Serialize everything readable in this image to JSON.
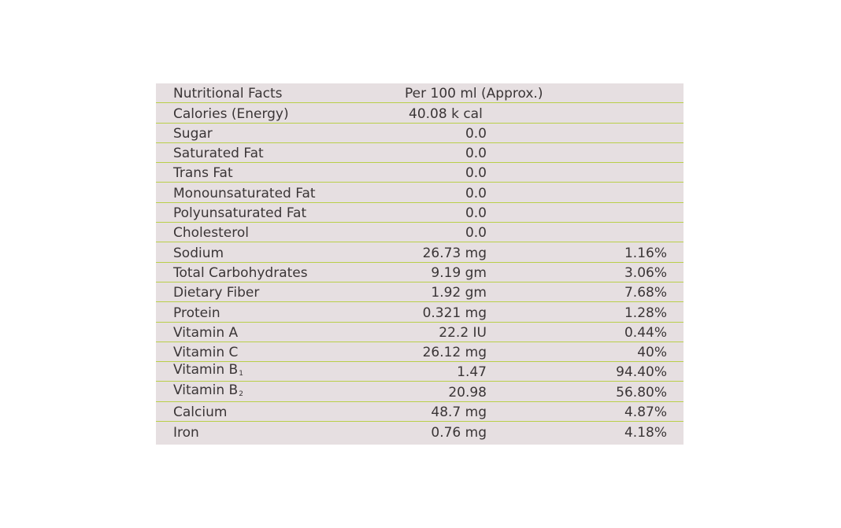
{
  "table": {
    "header": {
      "name": "Nutritional Facts",
      "amount": "Per 100 ml (Approx.)"
    },
    "rows": [
      {
        "name": "Calories (Energy)",
        "amount": "40.08 k cal",
        "dv": ""
      },
      {
        "name": "Sugar",
        "amount": "0.0",
        "dv": ""
      },
      {
        "name": "Saturated Fat",
        "amount": "0.0",
        "dv": ""
      },
      {
        "name": "Trans Fat",
        "amount": "0.0",
        "dv": ""
      },
      {
        "name": "Monounsaturated Fat",
        "amount": "0.0",
        "dv": ""
      },
      {
        "name": "Polyunsaturated Fat",
        "amount": "0.0",
        "dv": ""
      },
      {
        "name": "Cholesterol",
        "amount": "0.0",
        "dv": ""
      },
      {
        "name": "Sodium",
        "amount": "26.73 mg",
        "dv": "1.16%"
      },
      {
        "name": "Total Carbohydrates",
        "amount": "9.19 gm",
        "dv": "3.06%"
      },
      {
        "name": "Dietary Fiber",
        "amount": "1.92 gm",
        "dv": "7.68%"
      },
      {
        "name": "Protein",
        "amount": "0.321 mg",
        "dv": "1.28%"
      },
      {
        "name": "Vitamin A",
        "amount": "22.2 IU",
        "dv": "0.44%"
      },
      {
        "name": "Vitamin C",
        "amount": "26.12 mg",
        "dv": "40%"
      },
      {
        "name": "Vitamin B",
        "sub": "1",
        "amount": "1.47",
        "dv": "94.40%"
      },
      {
        "name": "Vitamin B",
        "sub": "2",
        "amount": "20.98",
        "dv": "56.80%"
      },
      {
        "name": "Calcium",
        "amount": "48.7 mg",
        "dv": "4.87%"
      },
      {
        "name": "Iron",
        "amount": "0.76 mg",
        "dv": "4.18%"
      }
    ]
  }
}
